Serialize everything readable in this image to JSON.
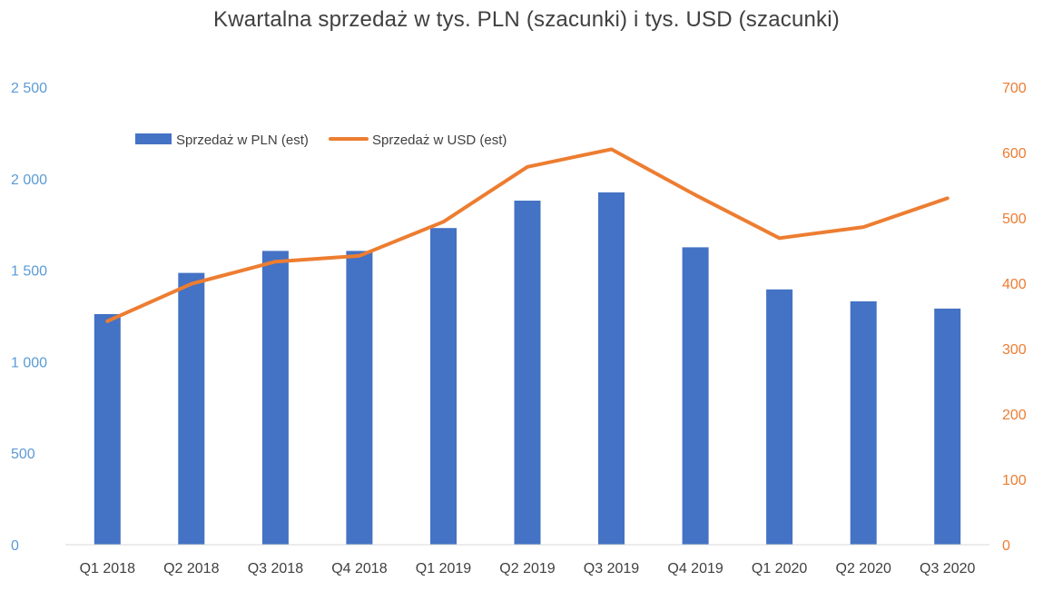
{
  "chart_data": {
    "type": "bar+line",
    "title": "Kwartalna sprzedaż w tys. PLN (szacunki) i tys. USD (szacunki)",
    "categories": [
      "Q1 2018",
      "Q2 2018",
      "Q3 2018",
      "Q4 2018",
      "Q1 2019",
      "Q2 2019",
      "Q3 2019",
      "Q4 2019",
      "Q1 2020",
      "Q2 2020",
      "Q3 2020"
    ],
    "series": [
      {
        "name": "Sprzedaż w PLN (est)",
        "type": "bar",
        "axis": "left",
        "color": "#4472C4",
        "values": [
          1260,
          1485,
          1605,
          1605,
          1730,
          1880,
          1925,
          1625,
          1395,
          1330,
          1290
        ]
      },
      {
        "name": "Sprzedaż w USD (est)",
        "type": "line",
        "axis": "right",
        "color": "#ED7D31",
        "values": [
          342,
          399,
          433,
          442,
          494,
          578,
          605,
          535,
          469,
          486,
          530
        ]
      }
    ],
    "y_left": {
      "ylim": [
        0,
        2500
      ],
      "ticks": [
        0,
        500,
        1000,
        1500,
        2000,
        2500
      ],
      "tick_labels": [
        "0",
        "500",
        "1 000",
        "1 500",
        "2 000",
        "2 500"
      ],
      "color": "#5B9BD5"
    },
    "y_right": {
      "ylim": [
        0,
        700
      ],
      "ticks": [
        0,
        100,
        200,
        300,
        400,
        500,
        600,
        700
      ],
      "tick_labels": [
        "0",
        "100",
        "200",
        "300",
        "400",
        "500",
        "600",
        "700"
      ],
      "color": "#ED7D31"
    },
    "grid": false,
    "legend": "top-left"
  }
}
